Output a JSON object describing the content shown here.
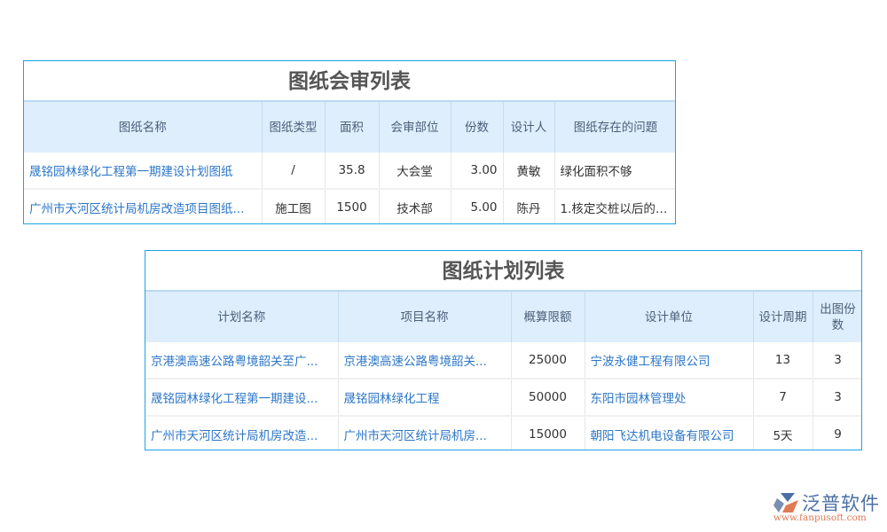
{
  "review_table": {
    "title": "图纸会审列表",
    "headers": [
      "图纸名称",
      "图纸类型",
      "面积",
      "会审部位",
      "份数",
      "设计人",
      "图纸存在的问题"
    ],
    "rows": [
      [
        "晟铭园林绿化工程第一期建设计划图纸",
        "/",
        "35.8",
        "大会堂",
        "3.00",
        "黄敏",
        "绿化面积不够"
      ],
      [
        "广州市天河区统计局机房改造项目图纸...",
        "施工图",
        "1500",
        "技术部",
        "5.00",
        "陈丹",
        "1.核定交桩以后的标..."
      ]
    ]
  },
  "plan_table": {
    "title": "图纸计划列表",
    "headers": [
      "计划名称",
      "项目名称",
      "概算限额",
      "设计单位",
      "设计周期",
      "出图份数"
    ],
    "rows": [
      [
        "京港澳高速公路粤境韶关至广...",
        "京港澳高速公路粤境韶关...",
        "25000",
        "宁波永健工程有限公司",
        "13",
        "3"
      ],
      [
        "晟铭园林绿化工程第一期建设...",
        "晟铭园林绿化工程",
        "50000",
        "东阳市园林管理处",
        "7",
        "3"
      ],
      [
        "广州市天河区统计局机房改造...",
        "广州市天河区统计局机房...",
        "15000",
        "朝阳飞达机电设备有限公司",
        "5天",
        "9"
      ]
    ]
  },
  "logo": {
    "name": "泛普软件",
    "url": "www.fanpusoft.com"
  },
  "colors": {
    "border": "#1aa3e8",
    "header_bg": "#deeefc",
    "link": "#2b76c8"
  }
}
